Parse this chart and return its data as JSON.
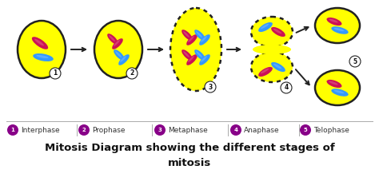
{
  "title_line1": "Mitosis Diagram showing the different stages of",
  "title_line2": "mitosis",
  "stages": [
    "Interphase",
    "Prophase",
    "Metaphase",
    "Anaphase",
    "Telophase"
  ],
  "bg_color": "#ffffff",
  "cell_color": "#ffff00",
  "cell_edge_color": "#222222",
  "chromosome_red": "#cc1155",
  "chromosome_blue": "#3399ff",
  "legend_circle_color": "#880088",
  "arrow_color": "#222222",
  "title_color": "#111111",
  "legend_text_color": "#333333",
  "number_color": "#111111",
  "divider_color": "#aaaaaa"
}
